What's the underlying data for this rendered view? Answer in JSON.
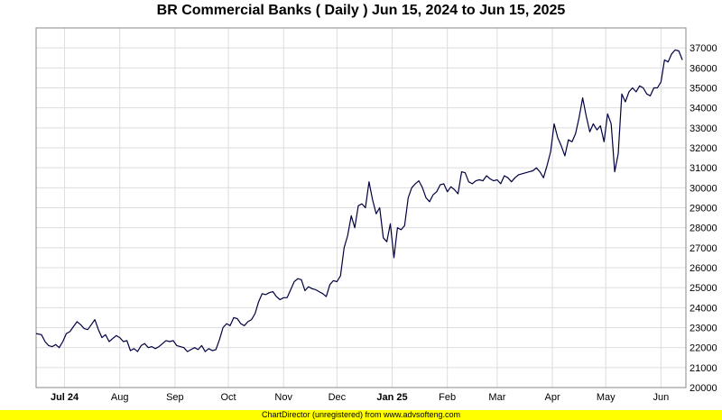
{
  "chart_data": {
    "type": "line",
    "title": "BR Commercial Banks ( Daily ) Jun 15, 2024 to Jun 15, 2025",
    "ylim": [
      20000,
      38000
    ],
    "y_ticks": [
      20000,
      21000,
      22000,
      23000,
      24000,
      25000,
      26000,
      27000,
      28000,
      29000,
      30000,
      31000,
      32000,
      33000,
      34000,
      35000,
      36000,
      37000
    ],
    "x_range": [
      "2024-06-15",
      "2025-06-15"
    ],
    "x_ticks": [
      {
        "label": "Jul 24",
        "date": "2024-07-01",
        "bold": true
      },
      {
        "label": "Aug",
        "date": "2024-08-01",
        "bold": false
      },
      {
        "label": "Sep",
        "date": "2024-09-01",
        "bold": false
      },
      {
        "label": "Oct",
        "date": "2024-10-01",
        "bold": false
      },
      {
        "label": "Nov",
        "date": "2024-11-01",
        "bold": false
      },
      {
        "label": "Dec",
        "date": "2024-12-01",
        "bold": false
      },
      {
        "label": "Jan 25",
        "date": "2025-01-01",
        "bold": true
      },
      {
        "label": "Feb",
        "date": "2025-02-01",
        "bold": false
      },
      {
        "label": "Mar",
        "date": "2025-03-01",
        "bold": false
      },
      {
        "label": "Apr",
        "date": "2025-04-01",
        "bold": false
      },
      {
        "label": "May",
        "date": "2025-05-01",
        "bold": false
      },
      {
        "label": "Jun",
        "date": "2025-06-01",
        "bold": false
      }
    ],
    "grid": true,
    "series": [
      {
        "color": "#000040",
        "points": [
          [
            "2024-06-15",
            22700
          ],
          [
            "2024-06-18",
            22650
          ],
          [
            "2024-06-20",
            22300
          ],
          [
            "2024-06-22",
            22100
          ],
          [
            "2024-06-24",
            22050
          ],
          [
            "2024-06-26",
            22150
          ],
          [
            "2024-06-28",
            22000
          ],
          [
            "2024-06-30",
            22300
          ],
          [
            "2024-07-02",
            22700
          ],
          [
            "2024-07-04",
            22800
          ],
          [
            "2024-07-06",
            23050
          ],
          [
            "2024-07-08",
            23300
          ],
          [
            "2024-07-10",
            23150
          ],
          [
            "2024-07-12",
            22950
          ],
          [
            "2024-07-14",
            22900
          ],
          [
            "2024-07-16",
            23150
          ],
          [
            "2024-07-18",
            23400
          ],
          [
            "2024-07-20",
            22900
          ],
          [
            "2024-07-22",
            22500
          ],
          [
            "2024-07-24",
            22650
          ],
          [
            "2024-07-26",
            22300
          ],
          [
            "2024-07-28",
            22450
          ],
          [
            "2024-07-30",
            22600
          ],
          [
            "2024-08-01",
            22500
          ],
          [
            "2024-08-03",
            22300
          ],
          [
            "2024-08-05",
            22350
          ],
          [
            "2024-08-07",
            21850
          ],
          [
            "2024-08-09",
            21950
          ],
          [
            "2024-08-11",
            21800
          ],
          [
            "2024-08-13",
            22100
          ],
          [
            "2024-08-15",
            22200
          ],
          [
            "2024-08-17",
            22000
          ],
          [
            "2024-08-19",
            22050
          ],
          [
            "2024-08-21",
            21950
          ],
          [
            "2024-08-23",
            22050
          ],
          [
            "2024-08-25",
            22200
          ],
          [
            "2024-08-27",
            22350
          ],
          [
            "2024-08-29",
            22300
          ],
          [
            "2024-08-31",
            22350
          ],
          [
            "2024-09-02",
            22100
          ],
          [
            "2024-09-04",
            22050
          ],
          [
            "2024-09-06",
            22000
          ],
          [
            "2024-09-08",
            21800
          ],
          [
            "2024-09-10",
            21900
          ],
          [
            "2024-09-12",
            22000
          ],
          [
            "2024-09-14",
            21900
          ],
          [
            "2024-09-16",
            22100
          ],
          [
            "2024-09-18",
            21800
          ],
          [
            "2024-09-20",
            21950
          ],
          [
            "2024-09-22",
            21850
          ],
          [
            "2024-09-24",
            21900
          ],
          [
            "2024-09-26",
            22400
          ],
          [
            "2024-09-28",
            23000
          ],
          [
            "2024-09-30",
            23200
          ],
          [
            "2024-10-02",
            23100
          ],
          [
            "2024-10-04",
            23500
          ],
          [
            "2024-10-06",
            23450
          ],
          [
            "2024-10-08",
            23200
          ],
          [
            "2024-10-10",
            23100
          ],
          [
            "2024-10-12",
            23300
          ],
          [
            "2024-10-14",
            23400
          ],
          [
            "2024-10-16",
            23700
          ],
          [
            "2024-10-18",
            24300
          ],
          [
            "2024-10-20",
            24700
          ],
          [
            "2024-10-22",
            24650
          ],
          [
            "2024-10-24",
            24750
          ],
          [
            "2024-10-26",
            24800
          ],
          [
            "2024-10-28",
            24550
          ],
          [
            "2024-10-30",
            24400
          ],
          [
            "2024-11-01",
            24500
          ],
          [
            "2024-11-03",
            24500
          ],
          [
            "2024-11-05",
            24900
          ],
          [
            "2024-11-07",
            25300
          ],
          [
            "2024-11-09",
            25450
          ],
          [
            "2024-11-11",
            25400
          ],
          [
            "2024-11-13",
            24850
          ],
          [
            "2024-11-15",
            25050
          ],
          [
            "2024-11-17",
            24950
          ],
          [
            "2024-11-19",
            24900
          ],
          [
            "2024-11-21",
            24800
          ],
          [
            "2024-11-23",
            24700
          ],
          [
            "2024-11-25",
            24550
          ],
          [
            "2024-11-27",
            25150
          ],
          [
            "2024-11-29",
            25350
          ],
          [
            "2024-12-01",
            25300
          ],
          [
            "2024-12-03",
            25600
          ],
          [
            "2024-12-05",
            27000
          ],
          [
            "2024-12-07",
            27600
          ],
          [
            "2024-12-09",
            28600
          ],
          [
            "2024-12-11",
            28000
          ],
          [
            "2024-12-13",
            29100
          ],
          [
            "2024-12-15",
            29200
          ],
          [
            "2024-12-17",
            29000
          ],
          [
            "2024-12-19",
            30300
          ],
          [
            "2024-12-21",
            29400
          ],
          [
            "2024-12-23",
            28700
          ],
          [
            "2024-12-25",
            29000
          ],
          [
            "2024-12-27",
            27500
          ],
          [
            "2024-12-29",
            27300
          ],
          [
            "2024-12-31",
            28200
          ],
          [
            "2025-01-02",
            26500
          ],
          [
            "2025-01-04",
            28000
          ],
          [
            "2025-01-06",
            27900
          ],
          [
            "2025-01-08",
            28100
          ],
          [
            "2025-01-10",
            29500
          ],
          [
            "2025-01-12",
            30000
          ],
          [
            "2025-01-14",
            30200
          ],
          [
            "2025-01-16",
            30350
          ],
          [
            "2025-01-18",
            30000
          ],
          [
            "2025-01-20",
            29500
          ],
          [
            "2025-01-22",
            29300
          ],
          [
            "2025-01-24",
            29650
          ],
          [
            "2025-01-26",
            29800
          ],
          [
            "2025-01-28",
            30150
          ],
          [
            "2025-01-30",
            30200
          ],
          [
            "2025-02-01",
            29800
          ],
          [
            "2025-02-03",
            30050
          ],
          [
            "2025-02-05",
            29900
          ],
          [
            "2025-02-07",
            29700
          ],
          [
            "2025-02-09",
            30800
          ],
          [
            "2025-02-11",
            30750
          ],
          [
            "2025-02-13",
            30300
          ],
          [
            "2025-02-15",
            30200
          ],
          [
            "2025-02-17",
            30350
          ],
          [
            "2025-02-19",
            30400
          ],
          [
            "2025-02-21",
            30350
          ],
          [
            "2025-02-23",
            30600
          ],
          [
            "2025-02-25",
            30450
          ],
          [
            "2025-02-27",
            30350
          ],
          [
            "2025-03-01",
            30400
          ],
          [
            "2025-03-03",
            30200
          ],
          [
            "2025-03-05",
            30600
          ],
          [
            "2025-03-07",
            30500
          ],
          [
            "2025-03-09",
            30300
          ],
          [
            "2025-03-11",
            30500
          ],
          [
            "2025-03-13",
            30650
          ],
          [
            "2025-03-15",
            30700
          ],
          [
            "2025-03-17",
            30750
          ],
          [
            "2025-03-19",
            30800
          ],
          [
            "2025-03-21",
            30850
          ],
          [
            "2025-03-23",
            31000
          ],
          [
            "2025-03-25",
            30800
          ],
          [
            "2025-03-27",
            30500
          ],
          [
            "2025-03-29",
            31100
          ],
          [
            "2025-03-31",
            31800
          ],
          [
            "2025-04-02",
            33200
          ],
          [
            "2025-04-04",
            32500
          ],
          [
            "2025-04-06",
            32100
          ],
          [
            "2025-04-08",
            31600
          ],
          [
            "2025-04-10",
            32400
          ],
          [
            "2025-04-12",
            32300
          ],
          [
            "2025-04-14",
            32700
          ],
          [
            "2025-04-16",
            33500
          ],
          [
            "2025-04-18",
            34500
          ],
          [
            "2025-04-20",
            33600
          ],
          [
            "2025-04-22",
            32800
          ],
          [
            "2025-04-24",
            33200
          ],
          [
            "2025-04-26",
            32900
          ],
          [
            "2025-04-28",
            33100
          ],
          [
            "2025-04-30",
            32300
          ],
          [
            "2025-05-02",
            33700
          ],
          [
            "2025-05-04",
            33200
          ],
          [
            "2025-05-06",
            30800
          ],
          [
            "2025-05-08",
            31700
          ],
          [
            "2025-05-10",
            34700
          ],
          [
            "2025-05-12",
            34300
          ],
          [
            "2025-05-14",
            34800
          ],
          [
            "2025-05-16",
            35000
          ],
          [
            "2025-05-18",
            34800
          ],
          [
            "2025-05-20",
            35100
          ],
          [
            "2025-05-22",
            35000
          ],
          [
            "2025-05-24",
            34700
          ],
          [
            "2025-05-26",
            34600
          ],
          [
            "2025-05-28",
            35000
          ],
          [
            "2025-05-30",
            35000
          ],
          [
            "2025-06-01",
            35300
          ],
          [
            "2025-06-03",
            36400
          ],
          [
            "2025-06-05",
            36300
          ],
          [
            "2025-06-07",
            36700
          ],
          [
            "2025-06-09",
            36900
          ],
          [
            "2025-06-11",
            36850
          ],
          [
            "2025-06-13",
            36400
          ]
        ]
      }
    ]
  },
  "footer": {
    "text": "ChartDirector (unregistered) from www.advsofteng.com"
  },
  "colors": {
    "line": "#000040",
    "grid": "#dddddd",
    "footer_bg": "#ffff00"
  }
}
